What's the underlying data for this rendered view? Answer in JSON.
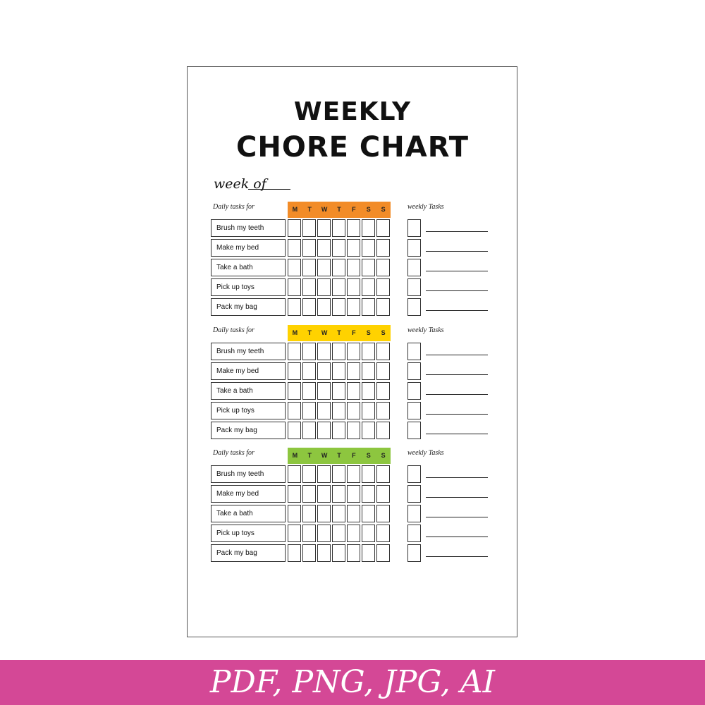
{
  "title_line1": "WEEKLY",
  "title_line2": "CHORE CHART",
  "week_of_label": "week of",
  "sections": [
    {
      "daily_label": "Daily tasks for",
      "weekly_label": "weekly Tasks",
      "header_color": "#f28c28",
      "days": [
        "M",
        "T",
        "W",
        "T",
        "F",
        "S",
        "S"
      ],
      "tasks": [
        "Brush my teeth",
        "Make my bed",
        "Take a bath",
        "Pick up toys",
        "Pack my bag"
      ]
    },
    {
      "daily_label": "Daily tasks for",
      "weekly_label": "weekly Tasks",
      "header_color": "#ffd200",
      "days": [
        "M",
        "T",
        "W",
        "T",
        "F",
        "S",
        "S"
      ],
      "tasks": [
        "Brush my teeth",
        "Make my bed",
        "Take a bath",
        "Pick up toys",
        "Pack my bag"
      ]
    },
    {
      "daily_label": "Daily tasks for",
      "weekly_label": "weekly Tasks",
      "header_color": "#8dc63f",
      "days": [
        "M",
        "T",
        "W",
        "T",
        "F",
        "S",
        "S"
      ],
      "tasks": [
        "Brush my teeth",
        "Make my bed",
        "Take a bath",
        "Pick up toys",
        "Pack my bag"
      ]
    }
  ],
  "banner": {
    "text": "PDF, PNG, JPG, AI",
    "color": "#d44896"
  }
}
